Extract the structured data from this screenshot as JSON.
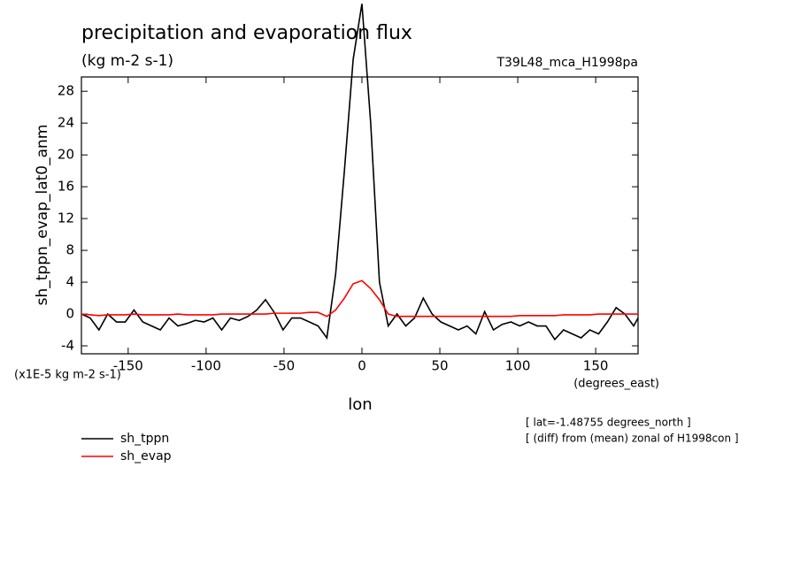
{
  "chart_data": {
    "type": "line",
    "title": "precipitation and evaporation flux",
    "subtitle": "(kg m-2 s-1)",
    "experiment_label": "T39L48_mca_H1998pa",
    "y_label": "sh_tppn_evap_lat0_anm",
    "y_unit_label": "(x1E-5 kg m-2 s-1)",
    "x_label": "lon",
    "x_unit_label": "(degrees_east)",
    "annotations": [
      "[ lat=-1.48755 degrees_north ]",
      "[ (diff) from (mean) zonal of H1998con ]"
    ],
    "x": [
      -180,
      -174.375,
      -168.75,
      -163.125,
      -157.5,
      -151.875,
      -146.25,
      -140.625,
      -135,
      -129.375,
      -123.75,
      -118.125,
      -112.5,
      -106.875,
      -101.25,
      -95.625,
      -90,
      -84.375,
      -78.75,
      -73.125,
      -67.5,
      -61.875,
      -56.25,
      -50.625,
      -45,
      -39.375,
      -33.75,
      -28.125,
      -22.5,
      -16.875,
      -11.25,
      -5.625,
      0,
      5.625,
      11.25,
      16.875,
      22.5,
      28.125,
      33.75,
      39.375,
      45,
      50.625,
      56.25,
      61.875,
      67.5,
      73.125,
      78.75,
      84.375,
      90,
      95.625,
      101.25,
      106.875,
      112.5,
      118.125,
      123.75,
      129.375,
      135,
      140.625,
      146.25,
      151.875,
      157.5,
      163.125,
      168.75,
      174.375,
      177.1875
    ],
    "series": [
      {
        "name": "sh_tppn",
        "color": "#000000",
        "values": [
          0,
          -0.5,
          -2,
          0,
          -1,
          -1,
          0.5,
          -1,
          -1.5,
          -2,
          -0.5,
          -1.5,
          -1.2,
          -0.8,
          -1,
          -0.5,
          -2,
          -0.5,
          -0.8,
          -0.3,
          0.5,
          1.8,
          0.2,
          -2,
          -0.5,
          -0.5,
          -1,
          -1.5,
          -3,
          5,
          18,
          32,
          39,
          24,
          4,
          -1.5,
          0,
          -1.5,
          -0.5,
          2,
          0,
          -1,
          -1.5,
          -2,
          -1.5,
          -2.5,
          0.3,
          -2,
          -1.3,
          -1,
          -1.5,
          -1,
          -1.5,
          -1.5,
          -3.2,
          -2,
          -2.5,
          -3,
          -2,
          -2.5,
          -1,
          0.8,
          0,
          -1.5,
          -0.5
        ]
      },
      {
        "name": "sh_evap",
        "color": "#ff0000",
        "values": [
          0,
          -0.1,
          -0.2,
          -0.1,
          -0.1,
          -0.1,
          0,
          -0.1,
          -0.1,
          -0.1,
          -0.1,
          0,
          -0.1,
          -0.1,
          -0.1,
          -0.1,
          0,
          0,
          0,
          0,
          0,
          0,
          0.1,
          0.1,
          0.1,
          0.1,
          0.2,
          0.2,
          -0.3,
          0.5,
          2,
          3.8,
          4.2,
          3.2,
          1.8,
          0,
          -0.3,
          -0.3,
          -0.3,
          -0.3,
          -0.3,
          -0.3,
          -0.3,
          -0.3,
          -0.3,
          -0.3,
          -0.3,
          -0.3,
          -0.3,
          -0.3,
          -0.2,
          -0.2,
          -0.2,
          -0.2,
          -0.2,
          -0.1,
          -0.1,
          -0.1,
          -0.1,
          0,
          0,
          0,
          0,
          0,
          0
        ]
      }
    ],
    "xlim": [
      -180,
      177.1875
    ],
    "ylim": [
      -5,
      29.8
    ],
    "xticks": [
      -150,
      -100,
      -50,
      0,
      50,
      100,
      150
    ],
    "yticks": [
      -4,
      0,
      4,
      8,
      12,
      16,
      20,
      24,
      28
    ],
    "grid": false,
    "legend": "bottom-left"
  }
}
